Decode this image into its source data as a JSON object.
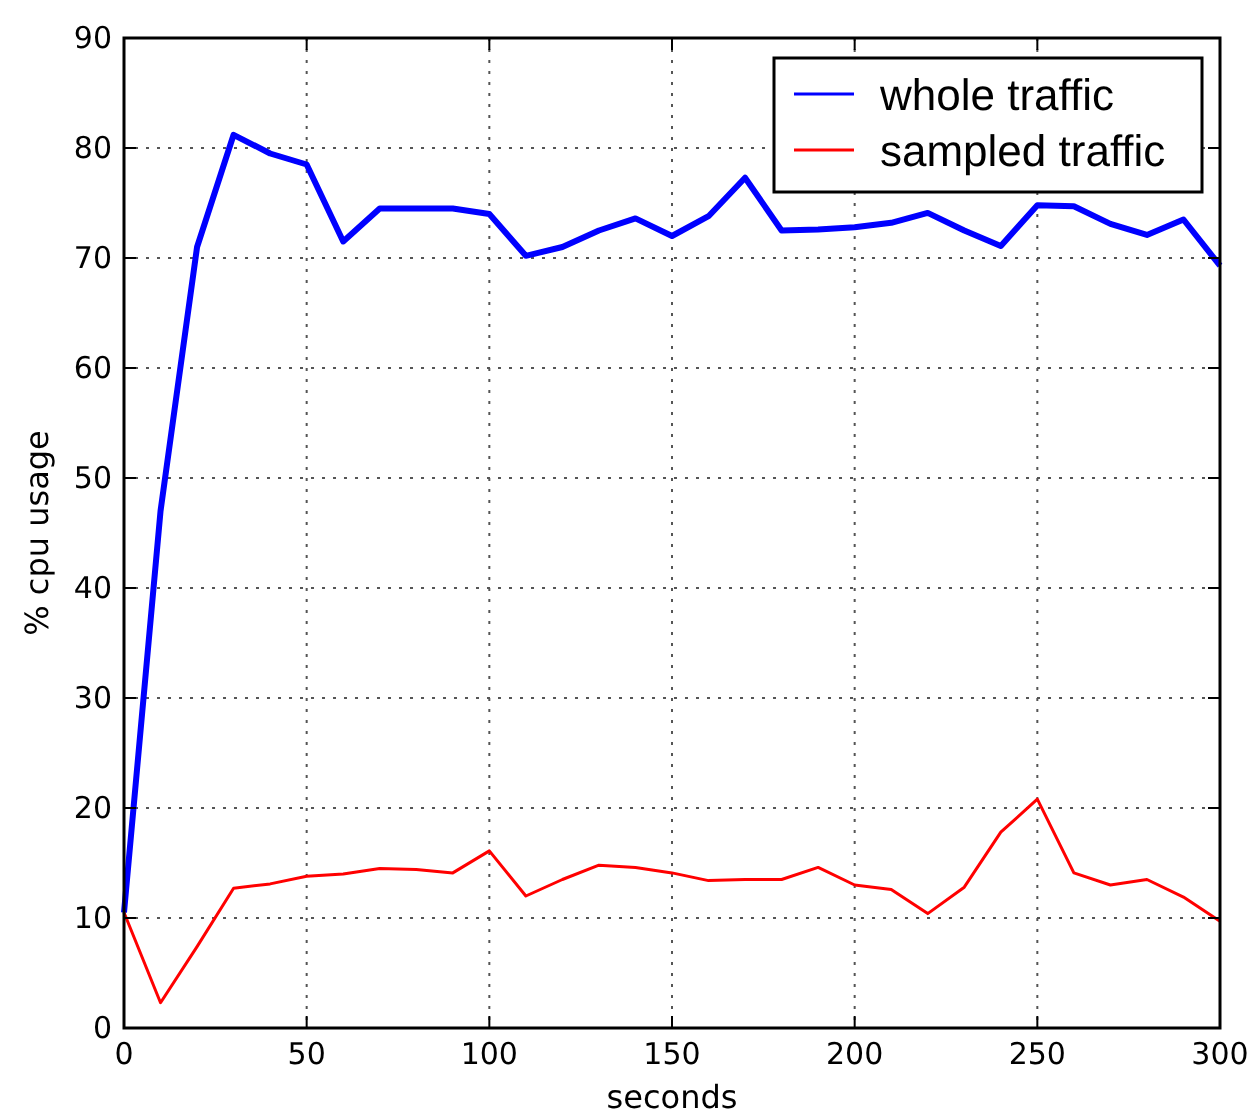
{
  "chart_data": {
    "type": "line",
    "xlabel": "seconds",
    "ylabel": "% cpu usage",
    "x": [
      0,
      10,
      20,
      30,
      40,
      50,
      60,
      70,
      80,
      90,
      100,
      110,
      120,
      130,
      140,
      150,
      160,
      170,
      180,
      190,
      200,
      210,
      220,
      230,
      240,
      250,
      260,
      270,
      280,
      290,
      300
    ],
    "series": [
      {
        "name": "whole traffic",
        "color": "#0000ff",
        "values": [
          10.5,
          47,
          71,
          81.2,
          79.5,
          78.5,
          71.5,
          74.5,
          74.5,
          74.5,
          74,
          70.2,
          71,
          72.5,
          73.6,
          72,
          73.8,
          77.3,
          72.5,
          72.6,
          72.8,
          73.2,
          74.1,
          72.5,
          71.1,
          74.8,
          74.7,
          73.1,
          72.1,
          73.5,
          69.3
        ]
      },
      {
        "name": "sampled traffic",
        "color": "#ff0000",
        "values": [
          10.5,
          2.3,
          7.4,
          12.7,
          13.1,
          13.8,
          14,
          14.5,
          14.4,
          14.1,
          16.1,
          12,
          13.5,
          14.8,
          14.6,
          14.1,
          13.4,
          13.5,
          13.5,
          14.6,
          13,
          12.6,
          10.4,
          12.8,
          17.8,
          20.8,
          14.1,
          13,
          13.5,
          11.9,
          9.7
        ]
      }
    ],
    "xlim": [
      0,
      300
    ],
    "xticks": [
      0,
      50,
      100,
      150,
      200,
      250,
      300
    ],
    "ylim": [
      0,
      90
    ],
    "yticks": [
      0,
      10,
      20,
      30,
      40,
      50,
      60,
      70,
      80,
      90
    ],
    "grid": true,
    "legend": "top right",
    "marker": "none",
    "line_style": "solid"
  }
}
